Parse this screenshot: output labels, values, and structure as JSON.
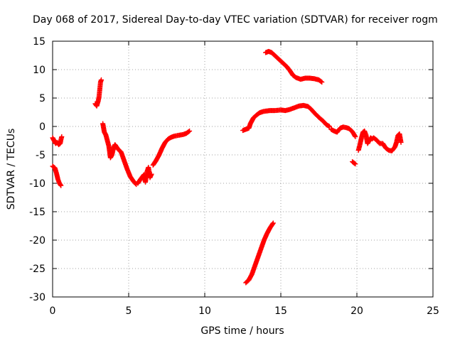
{
  "chart_data": {
    "type": "scatter",
    "title": "Day 068 of 2017, Sidereal Day-to-day VTEC variation (SDTVAR) for receiver rogm",
    "xlabel": "GPS time / hours",
    "ylabel": "SDTVAR / TECUs",
    "xlim": [
      0,
      25
    ],
    "ylim": [
      -30,
      15
    ],
    "xticks": [
      0,
      5,
      10,
      15,
      20,
      25
    ],
    "yticks": [
      -30,
      -25,
      -20,
      -15,
      -10,
      -5,
      0,
      5,
      10,
      15
    ],
    "grid": true,
    "marker": "+",
    "color": "#ff0000",
    "segments": [
      {
        "x": [
          0.0,
          0.1,
          0.2,
          0.3,
          0.4,
          0.5,
          0.55,
          0.6
        ],
        "y": [
          -2.0,
          -2.5,
          -3.0,
          -2.8,
          -3.2,
          -3.0,
          -2.3,
          -1.8
        ]
      },
      {
        "x": [
          0.0,
          0.15,
          0.25,
          0.35,
          0.45,
          0.55
        ],
        "y": [
          -7.0,
          -7.3,
          -8.2,
          -9.3,
          -10.0,
          -10.4
        ]
      },
      {
        "x": [
          2.8,
          2.9,
          3.0,
          3.05,
          3.1,
          3.15,
          3.2
        ],
        "y": [
          4.0,
          3.6,
          4.5,
          5.2,
          6.5,
          7.8,
          8.2
        ]
      },
      {
        "x": [
          3.3,
          3.4,
          3.5,
          3.6,
          3.7,
          3.75,
          3.8,
          3.9,
          4.0,
          4.1,
          4.3,
          4.5,
          4.7,
          4.9,
          5.1,
          5.3,
          5.5
        ],
        "y": [
          0.5,
          -1.0,
          -1.5,
          -2.5,
          -3.5,
          -4.5,
          -5.5,
          -5.0,
          -3.8,
          -3.2,
          -4.0,
          -4.5,
          -6.0,
          -7.5,
          -8.8,
          -9.6,
          -10.2
        ]
      },
      {
        "x": [
          5.6,
          5.8,
          6.0,
          6.1,
          6.2,
          6.3,
          6.4,
          6.5
        ],
        "y": [
          -10.0,
          -9.2,
          -8.5,
          -9.8,
          -8.0,
          -7.2,
          -9.0,
          -8.4
        ]
      },
      {
        "x": [
          6.6,
          6.8,
          7.0,
          7.2,
          7.4,
          7.6,
          7.8,
          8.0,
          8.2,
          8.4,
          8.6,
          8.8,
          9.0
        ],
        "y": [
          -6.8,
          -6.0,
          -5.0,
          -3.8,
          -2.8,
          -2.2,
          -1.9,
          -1.7,
          -1.6,
          -1.5,
          -1.4,
          -1.2,
          -0.8
        ]
      },
      {
        "x": [
          12.5,
          12.7,
          12.9,
          13.0,
          13.1,
          13.2,
          13.4,
          13.6,
          13.8,
          14.0,
          14.3,
          14.6,
          15.0,
          15.3,
          15.6,
          15.9,
          16.2,
          16.5,
          16.8,
          17.0,
          17.2,
          17.5,
          17.8,
          18.0,
          18.2
        ],
        "y": [
          -0.7,
          -0.5,
          -0.3,
          0.5,
          1.0,
          1.5,
          2.0,
          2.4,
          2.6,
          2.7,
          2.8,
          2.8,
          2.9,
          2.8,
          3.0,
          3.3,
          3.6,
          3.7,
          3.5,
          3.0,
          2.4,
          1.6,
          0.9,
          0.3,
          0.0
        ]
      },
      {
        "x": [
          18.3,
          18.5,
          18.7,
          18.9,
          19.1,
          19.3,
          19.5,
          19.7,
          19.9
        ],
        "y": [
          -0.5,
          -0.8,
          -1.0,
          -0.3,
          -0.1,
          -0.2,
          -0.4,
          -0.9,
          -1.8
        ]
      },
      {
        "x": [
          14.0,
          14.2,
          14.4,
          14.6,
          14.8,
          15.0,
          15.2,
          15.4,
          15.6,
          15.8,
          16.0,
          16.3,
          16.6,
          16.9,
          17.2,
          17.5,
          17.7
        ],
        "y": [
          13.0,
          13.2,
          13.0,
          12.5,
          12.0,
          11.5,
          11.0,
          10.5,
          9.8,
          9.0,
          8.6,
          8.3,
          8.5,
          8.5,
          8.4,
          8.2,
          7.8
        ]
      },
      {
        "x": [
          12.7,
          12.9,
          13.1,
          13.3,
          13.5,
          13.7,
          13.9,
          14.1,
          14.3,
          14.5
        ],
        "y": [
          -27.5,
          -27.0,
          -26.0,
          -24.5,
          -23.0,
          -21.5,
          -20.0,
          -18.8,
          -17.8,
          -17.0
        ]
      },
      {
        "x": [
          19.7,
          19.8,
          19.9
        ],
        "y": [
          -6.2,
          -6.4,
          -6.6
        ]
      },
      {
        "x": [
          20.1,
          20.2,
          20.3,
          20.4,
          20.5,
          20.6,
          20.7,
          20.8,
          20.9,
          21.0,
          21.1,
          21.3,
          21.5,
          21.7,
          21.9,
          22.1,
          22.3,
          22.5,
          22.6,
          22.7,
          22.8,
          22.9
        ],
        "y": [
          -4.2,
          -3.2,
          -2.0,
          -1.0,
          -0.8,
          -1.5,
          -3.0,
          -2.5,
          -2.0,
          -2.2,
          -2.0,
          -2.4,
          -3.0,
          -3.0,
          -3.8,
          -4.2,
          -4.3,
          -3.6,
          -2.8,
          -1.6,
          -1.3,
          -2.8
        ]
      }
    ]
  }
}
